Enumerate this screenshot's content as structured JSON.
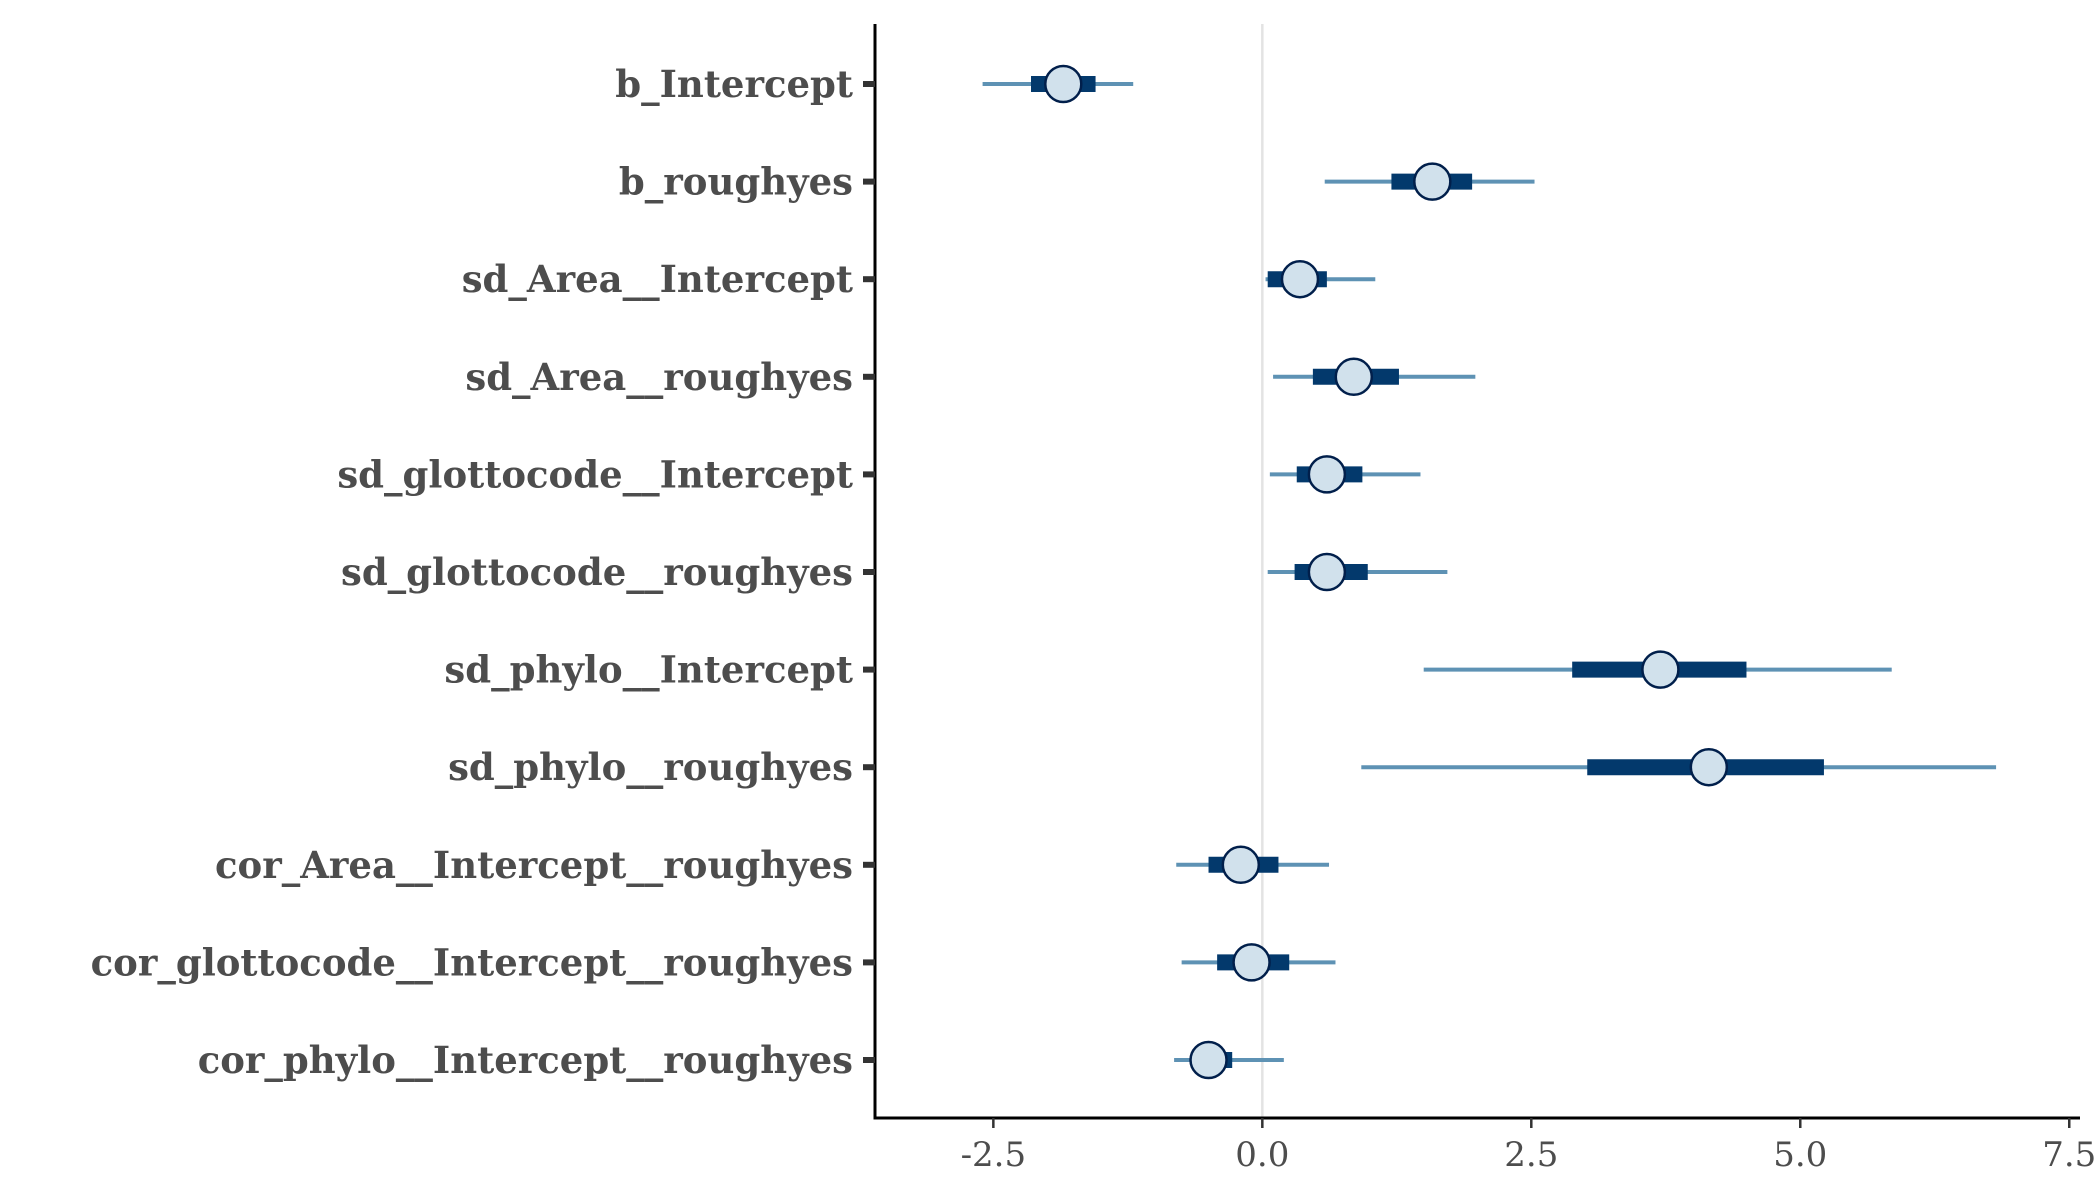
{
  "chart_data": {
    "type": "interval",
    "title": "",
    "xlabel": "",
    "ylabel": "",
    "xlim": [
      -3.6,
      7.6
    ],
    "x_ticks": [
      -2.5,
      0.0,
      2.5,
      5.0,
      7.5
    ],
    "x_tick_labels": [
      "-2.5",
      "0.0",
      "2.5",
      "5.0",
      "7.5"
    ],
    "reference_line": 0,
    "grid": false,
    "legend": "none",
    "colors": {
      "outer_interval": "#5e92b4",
      "inner_interval": "#03396c",
      "point_fill": "#d1e1ec",
      "point_stroke": "#011f4b",
      "reference_line": "#e3e3e3",
      "axis": "#000000",
      "text": "#4d4d4d"
    },
    "parameters": [
      {
        "label": "b_Intercept",
        "median": -1.85,
        "inner": [
          -2.15,
          -1.55
        ],
        "outer": [
          -2.6,
          -1.2
        ]
      },
      {
        "label": "b_roughyes",
        "median": 1.58,
        "inner": [
          1.2,
          1.95
        ],
        "outer": [
          0.58,
          2.53
        ]
      },
      {
        "label": "sd_Area__Intercept",
        "median": 0.35,
        "inner": [
          0.05,
          0.6
        ],
        "outer": [
          0.03,
          1.05
        ]
      },
      {
        "label": "sd_Area__roughyes",
        "median": 0.85,
        "inner": [
          0.47,
          1.27
        ],
        "outer": [
          0.1,
          1.98
        ]
      },
      {
        "label": "sd_glottocode__Intercept",
        "median": 0.6,
        "inner": [
          0.32,
          0.93
        ],
        "outer": [
          0.07,
          1.47
        ]
      },
      {
        "label": "sd_glottocode__roughyes",
        "median": 0.6,
        "inner": [
          0.3,
          0.98
        ],
        "outer": [
          0.05,
          1.72
        ]
      },
      {
        "label": "sd_phylo__Intercept",
        "median": 3.7,
        "inner": [
          2.88,
          4.5
        ],
        "outer": [
          1.5,
          5.85
        ]
      },
      {
        "label": "sd_phylo__roughyes",
        "median": 4.15,
        "inner": [
          3.02,
          5.22
        ],
        "outer": [
          0.92,
          6.82
        ]
      },
      {
        "label": "cor_Area__Intercept__roughyes",
        "median": -0.2,
        "inner": [
          -0.5,
          0.15
        ],
        "outer": [
          -0.8,
          0.62
        ]
      },
      {
        "label": "cor_glottocode__Intercept__roughyes",
        "median": -0.1,
        "inner": [
          -0.42,
          0.25
        ],
        "outer": [
          -0.75,
          0.68
        ]
      },
      {
        "label": "cor_phylo__Intercept__roughyes",
        "median": -0.5,
        "inner": [
          -0.65,
          -0.28
        ],
        "outer": [
          -0.82,
          0.2
        ]
      }
    ]
  }
}
